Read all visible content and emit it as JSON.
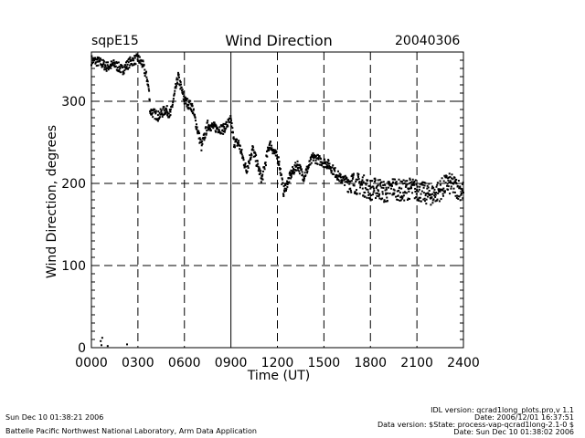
{
  "chart_data": {
    "type": "scatter",
    "title": "Wind Direction",
    "left_label": "sqpE15",
    "right_label": "20040306",
    "xlabel": "Time (UT)",
    "ylabel": "Wind Direction, degrees",
    "xlim": [
      0,
      24
    ],
    "ylim": [
      0,
      360
    ],
    "x_ticks": [
      {
        "value": 0,
        "label": "0000"
      },
      {
        "value": 3,
        "label": "0300"
      },
      {
        "value": 6,
        "label": "0600"
      },
      {
        "value": 9,
        "label": "0900"
      },
      {
        "value": 12,
        "label": "1200"
      },
      {
        "value": 15,
        "label": "1500"
      },
      {
        "value": 18,
        "label": "1800"
      },
      {
        "value": 21,
        "label": "2100"
      },
      {
        "value": 24,
        "label": "2400"
      }
    ],
    "y_ticks": [
      {
        "value": 0,
        "label": "0"
      },
      {
        "value": 100,
        "label": "100"
      },
      {
        "value": 200,
        "label": "200"
      },
      {
        "value": 300,
        "label": "300"
      }
    ],
    "grid": true,
    "scatter_deg": 6,
    "x": [
      0.0,
      0.5,
      1.0,
      1.5,
      2.0,
      2.5,
      3.0,
      3.3,
      3.6,
      3.7,
      3.8,
      4.3,
      4.8,
      5.1,
      5.6,
      6.0,
      6.5,
      7.1,
      7.5,
      8.0,
      8.5,
      9.0,
      9.2,
      9.5,
      10.0,
      10.4,
      11.0,
      11.5,
      12.1,
      12.4,
      12.9,
      13.3,
      13.7,
      14.3,
      15.3,
      16.1,
      16.9,
      17.5,
      18.0,
      18.5,
      19.0,
      19.5,
      20.0,
      20.5,
      21.0,
      21.5,
      22.0,
      22.5,
      23.0,
      23.5,
      24.0
    ],
    "y": [
      350,
      348,
      342,
      345,
      338,
      348,
      352,
      345,
      327,
      315,
      288,
      282,
      290,
      284,
      330,
      301,
      293,
      245,
      271,
      268,
      266,
      277,
      250,
      249,
      216,
      242,
      205,
      249,
      227,
      190,
      212,
      223,
      208,
      232,
      223,
      205,
      201,
      198,
      192,
      195,
      188,
      196,
      190,
      194,
      192,
      188,
      186,
      192,
      200,
      196,
      190
    ],
    "outliers": {
      "x": [
        0.6,
        0.65,
        0.7,
        1.05,
        2.3
      ],
      "y": [
        8,
        3,
        12,
        2,
        4
      ]
    }
  },
  "footer": {
    "left_date": "Sun Dec 10 01:38:21 2006",
    "left_org": "Battelle Pacific Northwest National Laboratory, Arm Data Application",
    "right_lines": [
      "IDL version: qcrad1long_plots.pro,v 1.1",
      "Date: 2006/12/01 16:37:51",
      "Data version: $State: process-vap-qcrad1long-2.1-0 $",
      "Date: Sun Dec 10 01:38:02 2006"
    ]
  }
}
